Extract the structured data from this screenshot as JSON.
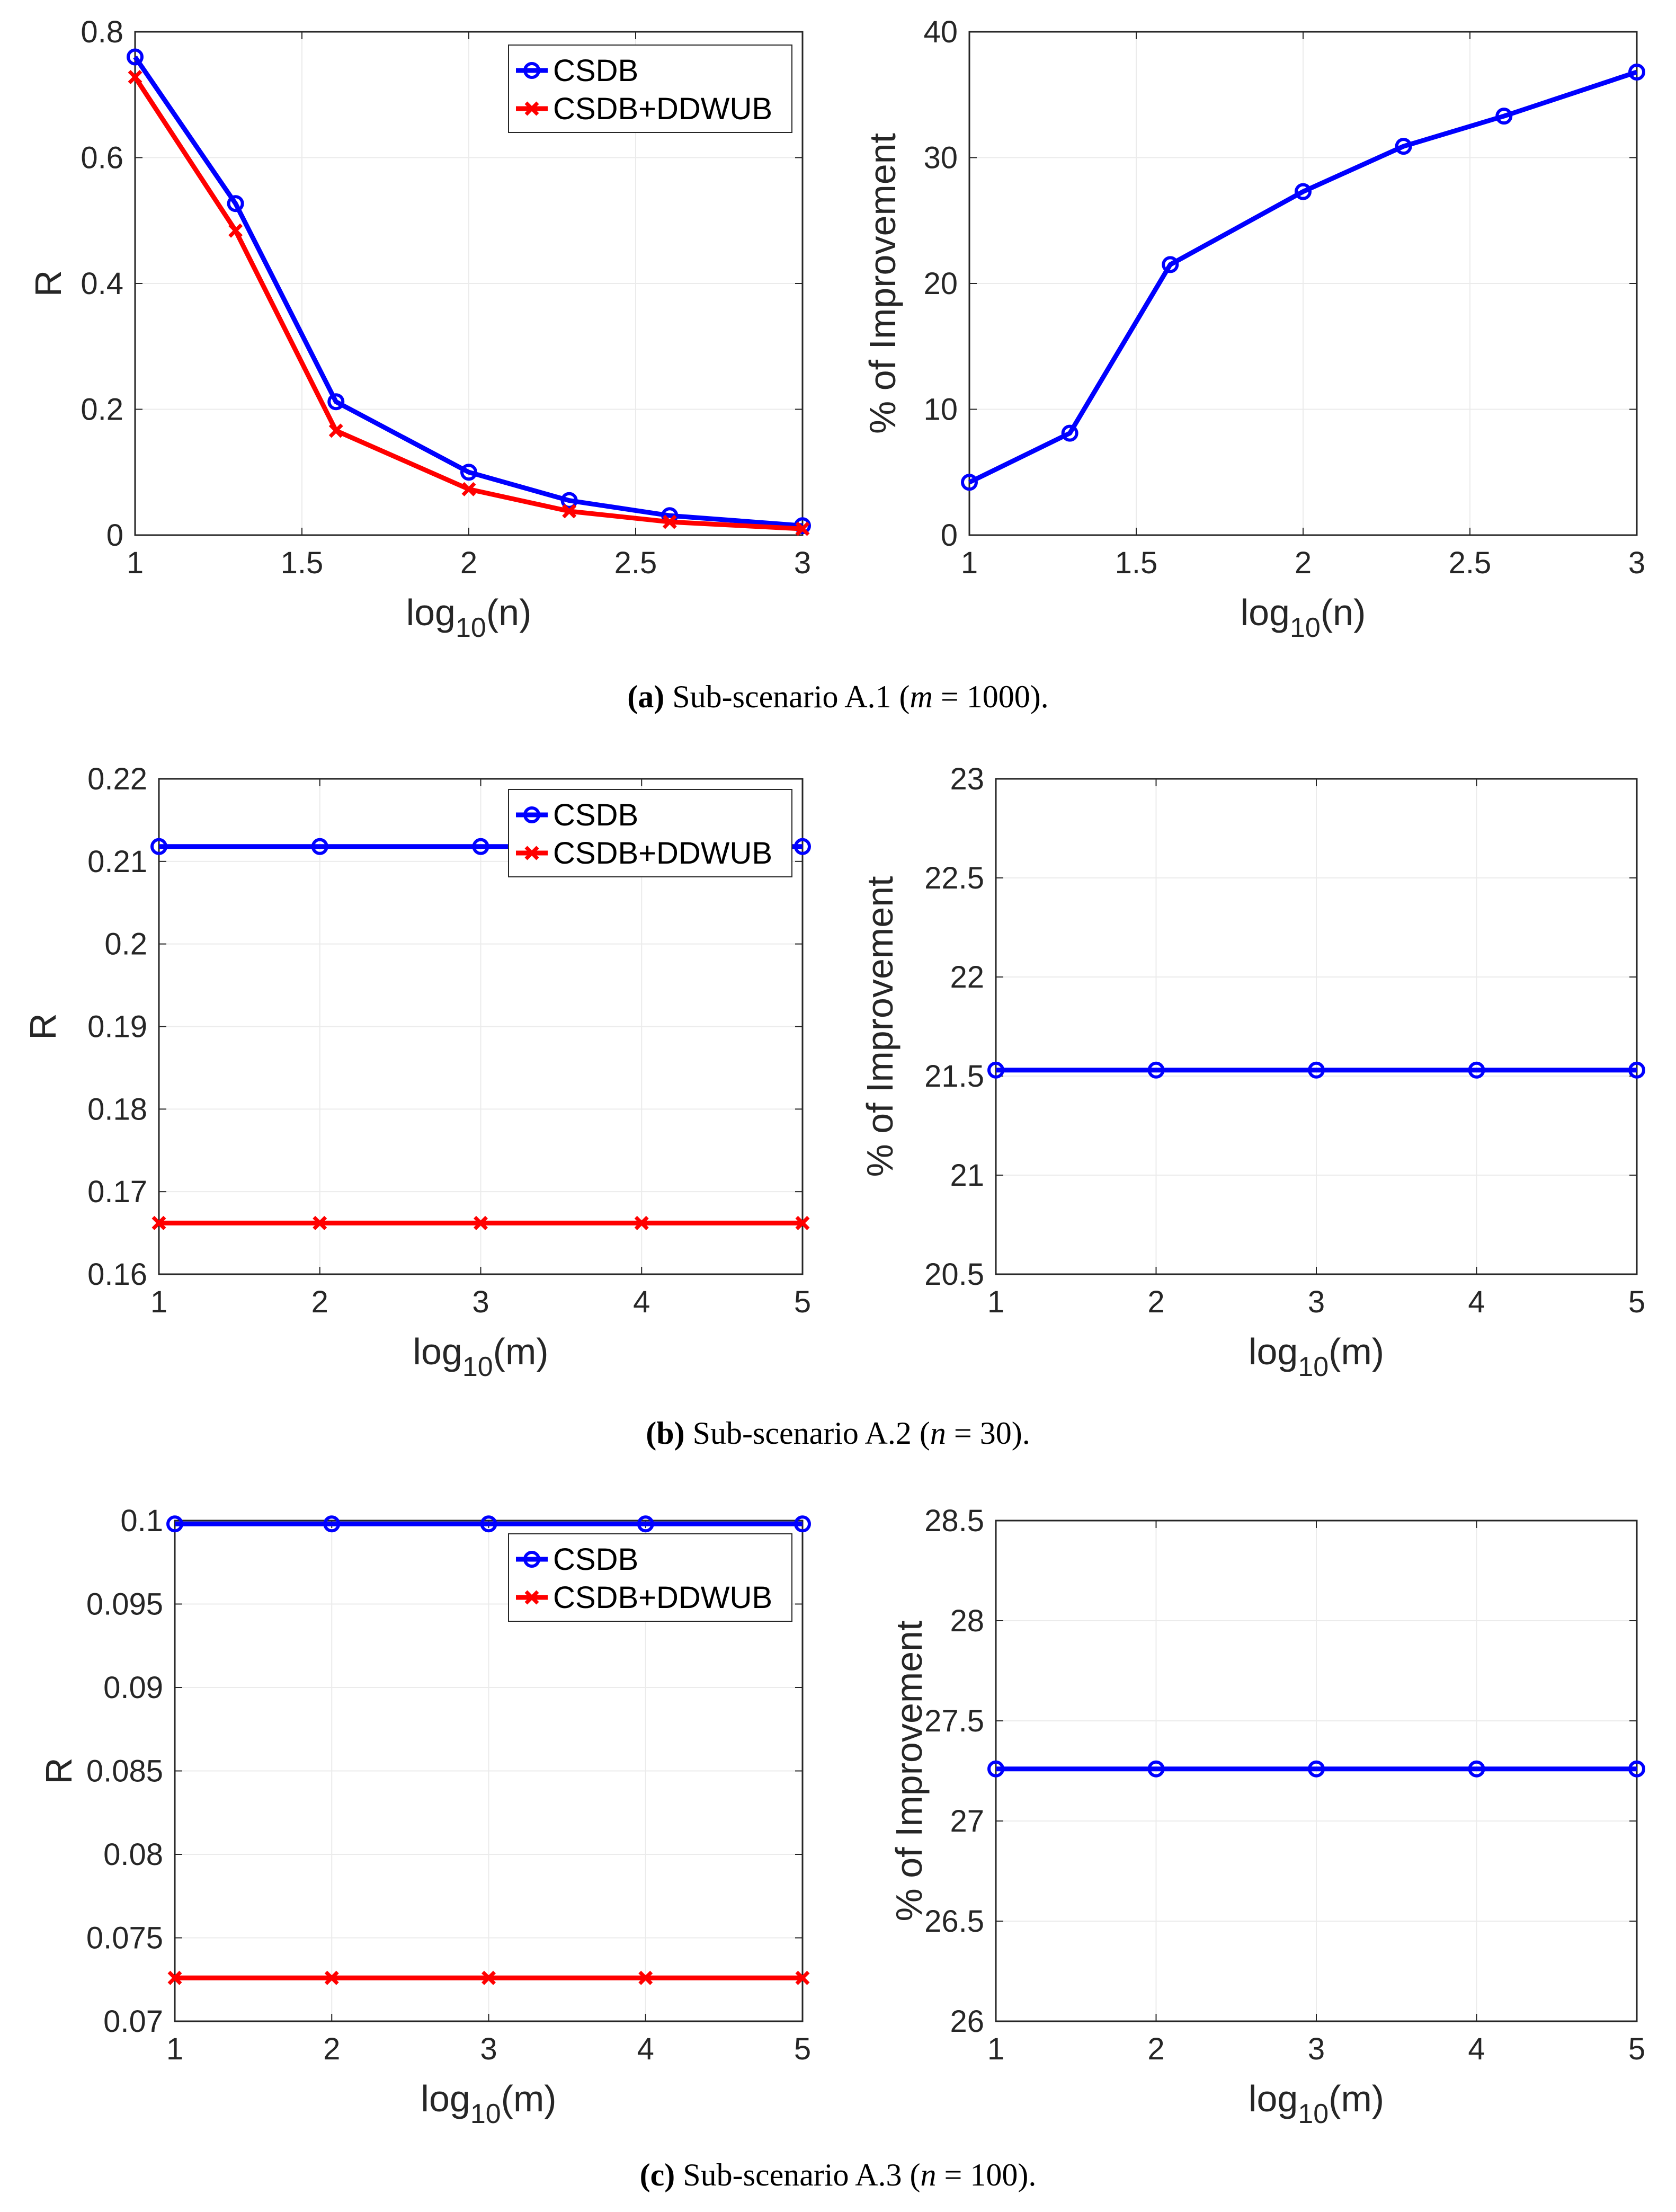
{
  "chart_data": [
    {
      "id": "a-left",
      "type": "line",
      "xlabel": "log10(n)",
      "ylabel": "R",
      "xlim": [
        1,
        3
      ],
      "ylim": [
        0,
        0.8
      ],
      "xticks": [
        "1",
        "1.5",
        "2",
        "2.5",
        "3"
      ],
      "yticks": [
        "0",
        "0.2",
        "0.4",
        "0.6",
        "0.8"
      ],
      "grid": true,
      "legend": "top-right",
      "x": [
        1,
        1.301,
        1.602,
        2,
        2.301,
        2.602,
        3
      ],
      "series": [
        {
          "name": "CSDB",
          "color": "#0000ff",
          "marker": "circle",
          "values": [
            0.76,
            0.527,
            0.212,
            0.1,
            0.055,
            0.031,
            0.015
          ]
        },
        {
          "name": "CSDB+DDWUB",
          "color": "#ff0000",
          "marker": "x",
          "values": [
            0.728,
            0.484,
            0.166,
            0.073,
            0.038,
            0.021,
            0.01
          ]
        }
      ]
    },
    {
      "id": "a-right",
      "type": "line",
      "xlabel": "log10(n)",
      "ylabel": "% of Improvement",
      "xlim": [
        1,
        3
      ],
      "ylim": [
        0,
        40
      ],
      "xticks": [
        "1",
        "1.5",
        "2",
        "2.5",
        "3"
      ],
      "yticks": [
        "0",
        "10",
        "20",
        "30",
        "40"
      ],
      "grid": true,
      "x": [
        1,
        1.301,
        1.602,
        2,
        2.301,
        2.602,
        3
      ],
      "series": [
        {
          "name": "Improvement",
          "color": "#0000ff",
          "marker": "circle",
          "values": [
            4.2,
            8.1,
            21.5,
            27.3,
            30.9,
            33.3,
            36.8
          ]
        }
      ]
    },
    {
      "id": "b-left",
      "type": "line",
      "xlabel": "log10(m)",
      "ylabel": "R",
      "xlim": [
        1,
        5
      ],
      "ylim": [
        0.16,
        0.22
      ],
      "xticks": [
        "1",
        "2",
        "3",
        "4",
        "5"
      ],
      "yticks": [
        "0.16",
        "0.17",
        "0.18",
        "0.19",
        "0.2",
        "0.21",
        "0.22"
      ],
      "grid": true,
      "legend": "top-right",
      "x": [
        1,
        2,
        3,
        4,
        5
      ],
      "series": [
        {
          "name": "CSDB",
          "color": "#0000ff",
          "marker": "circle",
          "values": [
            0.2118,
            0.2118,
            0.2118,
            0.2118,
            0.2118
          ]
        },
        {
          "name": "CSDB+DDWUB",
          "color": "#ff0000",
          "marker": "x",
          "values": [
            0.1662,
            0.1662,
            0.1662,
            0.1662,
            0.1662
          ]
        }
      ]
    },
    {
      "id": "b-right",
      "type": "line",
      "xlabel": "log10(m)",
      "ylabel": "% of Improvement",
      "xlim": [
        1,
        5
      ],
      "ylim": [
        20.5,
        23
      ],
      "xticks": [
        "1",
        "2",
        "3",
        "4",
        "5"
      ],
      "yticks": [
        "20.5",
        "21",
        "21.5",
        "22",
        "22.5",
        "23"
      ],
      "grid": true,
      "x": [
        1,
        2,
        3,
        4,
        5
      ],
      "series": [
        {
          "name": "Improvement",
          "color": "#0000ff",
          "marker": "circle",
          "values": [
            21.53,
            21.53,
            21.53,
            21.53,
            21.53
          ]
        }
      ]
    },
    {
      "id": "c-left",
      "type": "line",
      "xlabel": "log10(m)",
      "ylabel": "R",
      "xlim": [
        1,
        5
      ],
      "ylim": [
        0.07,
        0.1
      ],
      "xticks": [
        "1",
        "2",
        "3",
        "4",
        "5"
      ],
      "yticks": [
        "0.07",
        "0.075",
        "0.08",
        "0.085",
        "0.09",
        "0.095",
        "0.1"
      ],
      "grid": true,
      "legend": "top-right",
      "x": [
        1,
        2,
        3,
        4,
        5
      ],
      "series": [
        {
          "name": "CSDB",
          "color": "#0000ff",
          "marker": "circle",
          "values": [
            0.0998,
            0.0998,
            0.0998,
            0.0998,
            0.0998
          ]
        },
        {
          "name": "CSDB+DDWUB",
          "color": "#ff0000",
          "marker": "x",
          "values": [
            0.0726,
            0.0726,
            0.0726,
            0.0726,
            0.0726
          ]
        }
      ]
    },
    {
      "id": "c-right",
      "type": "line",
      "xlabel": "log10(m)",
      "ylabel": "% of Improvement",
      "xlim": [
        1,
        5
      ],
      "ylim": [
        26,
        28.5
      ],
      "xticks": [
        "1",
        "2",
        "3",
        "4",
        "5"
      ],
      "yticks": [
        "26",
        "26.5",
        "27",
        "27.5",
        "28",
        "28.5"
      ],
      "grid": true,
      "x": [
        1,
        2,
        3,
        4,
        5
      ],
      "series": [
        {
          "name": "Improvement",
          "color": "#0000ff",
          "marker": "circle",
          "values": [
            27.26,
            27.26,
            27.26,
            27.26,
            27.26
          ]
        }
      ]
    }
  ],
  "captions": [
    {
      "letter": "(a)",
      "text": " Sub-scenario A.1 (",
      "var": "m",
      "eq": " = 1000)."
    },
    {
      "letter": "(b)",
      "text": " Sub-scenario A.2 (",
      "var": "n",
      "eq": " = 30)."
    },
    {
      "letter": "(c)",
      "text": " Sub-scenario A.3 (",
      "var": "n",
      "eq": " = 100)."
    }
  ]
}
